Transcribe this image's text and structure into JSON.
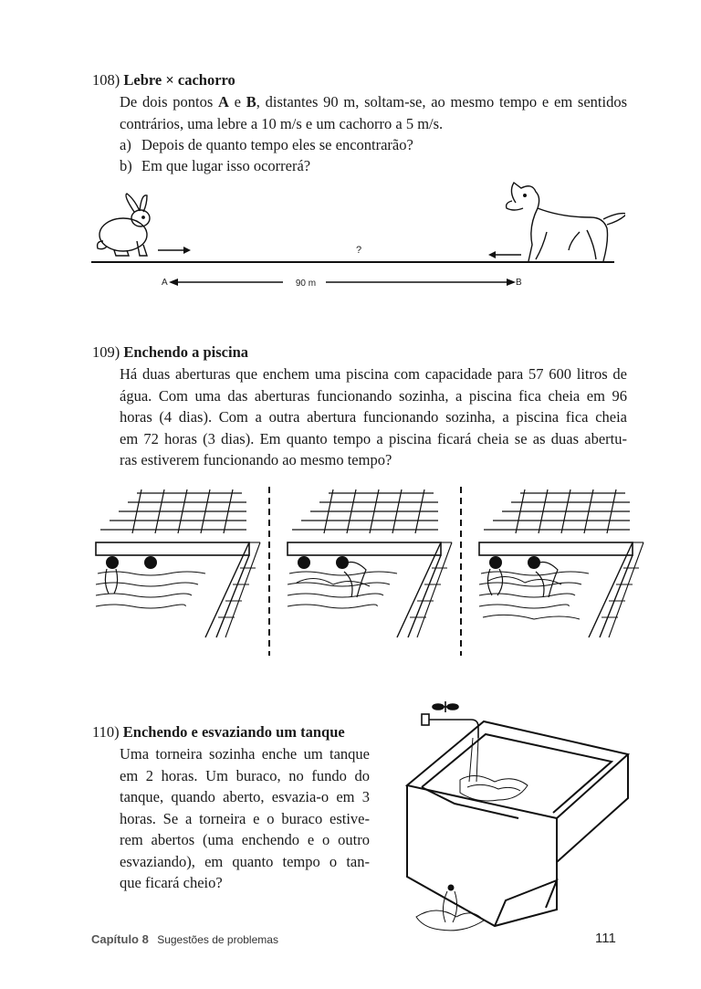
{
  "p108": {
    "number": "108)",
    "title": "Lebre × cachorro",
    "lines": [
      [
        "De dois pontos ",
        "A",
        " e ",
        "B",
        ", distantes 90 m, soltam-se, ao mesmo tempo e em sentidos"
      ],
      "contrários, uma lebre a 10 m/s e um cachorro a 5 m/s."
    ],
    "items": [
      {
        "label": "a)",
        "text": "Depois de quanto tempo eles se encontrarão?"
      },
      {
        "label": "b)",
        "text": "Em que lugar isso ocorrerá?"
      }
    ],
    "figure": {
      "left_label": "A",
      "right_label": "B",
      "distance_label": "90 m",
      "question": "?"
    }
  },
  "p109": {
    "number": "109)",
    "title": "Enchendo a piscina",
    "lines": [
      "Há duas aberturas que enchem uma piscina com capacidade para 57 600 litros de",
      "água. Com uma das aberturas funcionando sozinha, a piscina fica cheia em 96",
      "horas (4 dias). Com a outra abertura funcionando sozinha, a piscina fica cheia",
      "em 72 horas (3 dias). Em quanto tempo a piscina ficará cheia se as duas abertu-",
      "ras estiverem funcionando ao mesmo tempo?"
    ]
  },
  "p110": {
    "number": "110)",
    "title": "Enchendo e esvaziando um tanque",
    "lines": [
      "Uma torneira sozinha enche um tanque",
      "em 2 horas. Um buraco, no fundo do",
      "tanque, quando aberto, esvazia-o em 3",
      "horas. Se a torneira e o buraco estive-",
      "rem abertos (uma enchendo e o outro",
      "esvaziando), em quanto tempo o tan-",
      "que ficará cheio?"
    ]
  },
  "footer": {
    "chapter": "Capítulo 8",
    "section": "Sugestões de problemas",
    "page": "111"
  }
}
